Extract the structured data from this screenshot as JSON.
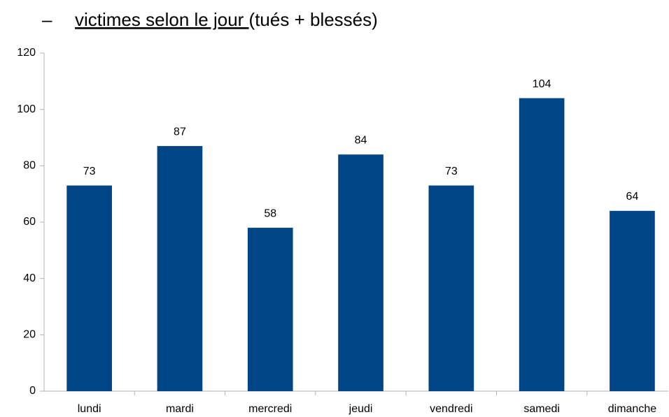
{
  "bullet": "–",
  "chart_data": {
    "type": "bar",
    "title": "victimes selon le jour ",
    "title_suffix": "(tués + blessés)",
    "categories": [
      "lundi",
      "mardi",
      "mercredi",
      "jeudi",
      "vendredi",
      "samedi",
      "dimanche"
    ],
    "values": [
      73,
      87,
      58,
      84,
      73,
      104,
      64
    ],
    "color": "#004586",
    "ylim": [
      0,
      120
    ],
    "yticks": [
      0,
      20,
      40,
      60,
      80,
      100,
      120
    ],
    "grid": false
  }
}
